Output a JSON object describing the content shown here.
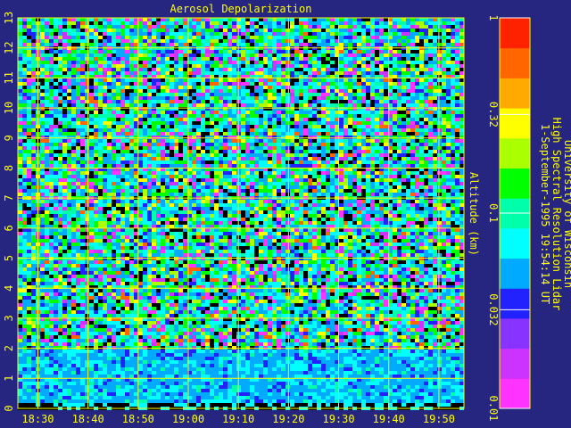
{
  "page": {
    "background_color": "#262680",
    "axis_color": "#ffff00"
  },
  "chart_data": {
    "type": "heatmap",
    "title": "Aerosol Depolarization",
    "xlabel": "",
    "ylabel": "Altitude (km)",
    "x_ticks": [
      "18:30",
      "18:40",
      "18:50",
      "19:00",
      "19:10",
      "19:20",
      "19:30",
      "19:40",
      "19:50"
    ],
    "x_range": [
      "18:26",
      "19:55"
    ],
    "y_ticks": [
      0,
      1,
      2,
      3,
      4,
      5,
      6,
      7,
      8,
      9,
      10,
      11,
      12,
      13
    ],
    "ylim": [
      0,
      13
    ],
    "grid": true,
    "colorbar": {
      "scale": "log",
      "range": [
        0.01,
        1
      ],
      "tick_labels": [
        "1",
        "0.32",
        "0.1",
        "0.032",
        "0.01"
      ],
      "colors_low_to_high": [
        "#ff33ff",
        "#cc33ff",
        "#8833ff",
        "#2222ff",
        "#00aaff",
        "#00ffff",
        "#00ffaa",
        "#00ff00",
        "#aaff00",
        "#ffff00",
        "#ffaa00",
        "#ff6600",
        "#ff2200"
      ]
    },
    "side_text": {
      "line1": "University of Wisconsin",
      "line2": "High Spectral Resolution Lidar",
      "line3": "1-September-1995 19:54:14 UT"
    },
    "notes": {
      "field_description": "Noisy depolarization field dominated by 0.03-0.1 values; lower layer 0-2 km mostly 0.03-0.06 (cyan/blue)."
    }
  }
}
